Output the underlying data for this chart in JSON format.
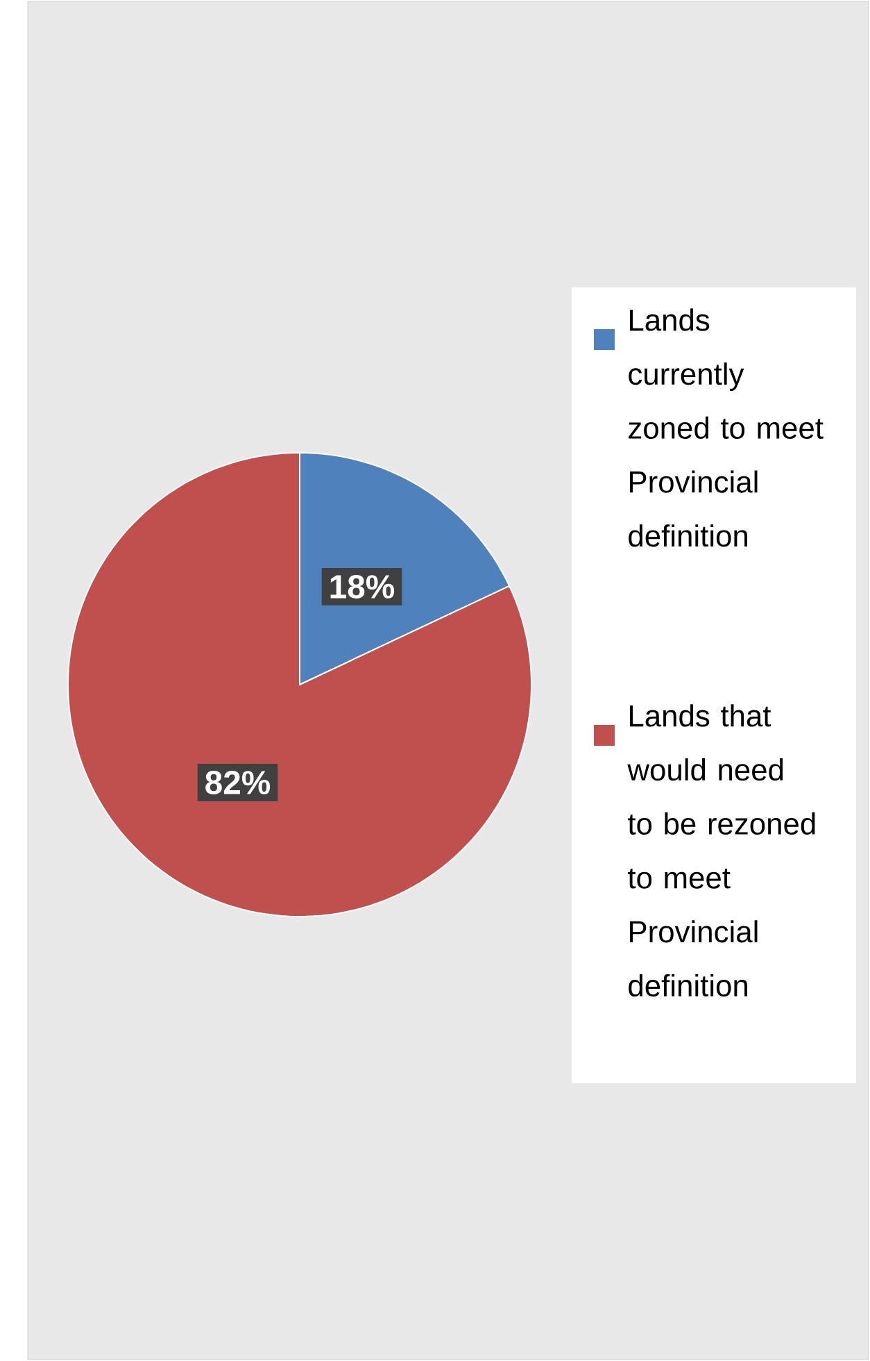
{
  "chart_data": {
    "type": "pie",
    "categories": [
      "Lands currently zoned to meet Provincial definition",
      "Lands that would need to be rezoned to meet Provincial definition"
    ],
    "values": [
      18,
      82
    ],
    "colors": [
      "#4f81bd",
      "#c0504d"
    ],
    "value_labels": [
      "18%",
      "82%"
    ],
    "legend": "right"
  }
}
